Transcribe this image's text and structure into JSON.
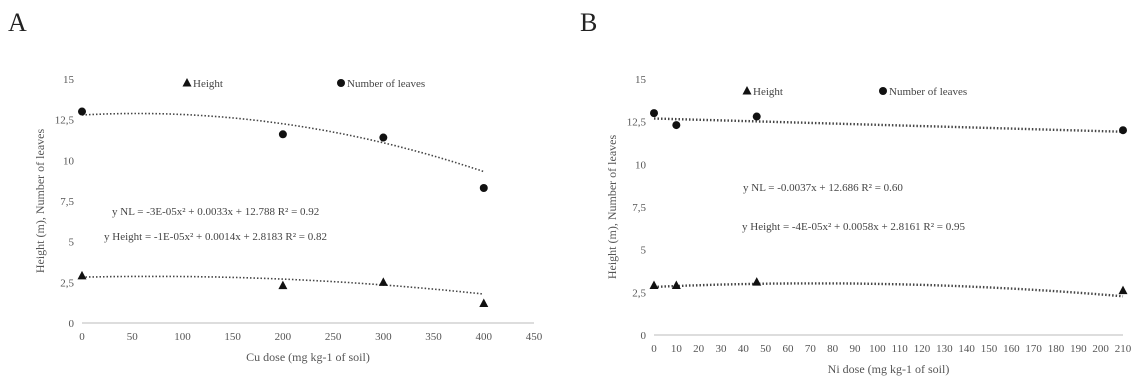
{
  "panels": {
    "a": {
      "letter": "A"
    },
    "b": {
      "letter": "B"
    }
  },
  "chart_data": [
    {
      "type": "scatter",
      "panel": "A",
      "xlabel": "Cu dose (mg kg-1 of soil)",
      "ylabel": "Height (m), Number of leaves",
      "xlim": [
        0,
        450
      ],
      "ylim": [
        0,
        15
      ],
      "xticks": [
        "0",
        "50",
        "100",
        "150",
        "200",
        "250",
        "300",
        "350",
        "400",
        "450"
      ],
      "yticks": [
        "0",
        "2,5",
        "5",
        "7,5",
        "10",
        "12,5",
        "15"
      ],
      "legend_position": "top",
      "series": [
        {
          "name": "Height",
          "marker": "triangle",
          "x": [
            0,
            200,
            300,
            400
          ],
          "y": [
            2.9,
            2.3,
            2.5,
            1.2
          ],
          "trend": {
            "a": -1e-05,
            "b": 0.0014,
            "c": 2.8183
          }
        },
        {
          "name": "Number of leaves",
          "marker": "circle",
          "x": [
            0,
            200,
            300,
            400
          ],
          "y": [
            13.0,
            11.6,
            11.4,
            8.3
          ],
          "trend": {
            "a": -3e-05,
            "b": 0.0033,
            "c": 12.788
          }
        }
      ],
      "annotations": [
        "y NL = -3E-05x² + 0.0033x + 12.788 R² = 0.92",
        "y Height = -1E-05x² + 0.0014x + 2.8183 R² = 0.82"
      ]
    },
    {
      "type": "scatter",
      "panel": "B",
      "xlabel": "Ni dose (mg kg-1 of soil)",
      "ylabel": "Height (m), Number of leaves",
      "xlim": [
        0,
        210
      ],
      "ylim": [
        0,
        15
      ],
      "xticks": [
        "0",
        "10",
        "20",
        "30",
        "40",
        "50",
        "60",
        "70",
        "80",
        "90",
        "100",
        "110",
        "120",
        "130",
        "140",
        "150",
        "160",
        "170",
        "180",
        "190",
        "200",
        "210"
      ],
      "yticks": [
        "0",
        "2,5",
        "5",
        "7,5",
        "10",
        "12,5",
        "15"
      ],
      "legend_position": "top",
      "series": [
        {
          "name": "Height",
          "marker": "triangle",
          "x": [
            0,
            10,
            46,
            210
          ],
          "y": [
            2.9,
            2.9,
            3.1,
            2.6
          ],
          "trend": {
            "a": -4e-05,
            "b": 0.0058,
            "c": 2.8161
          }
        },
        {
          "name": "Number of leaves",
          "marker": "circle",
          "x": [
            0,
            10,
            46,
            210
          ],
          "y": [
            13.0,
            12.3,
            12.8,
            12.0
          ],
          "trend": {
            "a": 0,
            "b": -0.0037,
            "c": 12.686
          }
        }
      ],
      "annotations": [
        "y NL = -0.0037x + 12.686 R² = 0.60",
        "y Height = -4E-05x² + 0.0058x + 2.8161 R² = 0.95"
      ]
    }
  ]
}
